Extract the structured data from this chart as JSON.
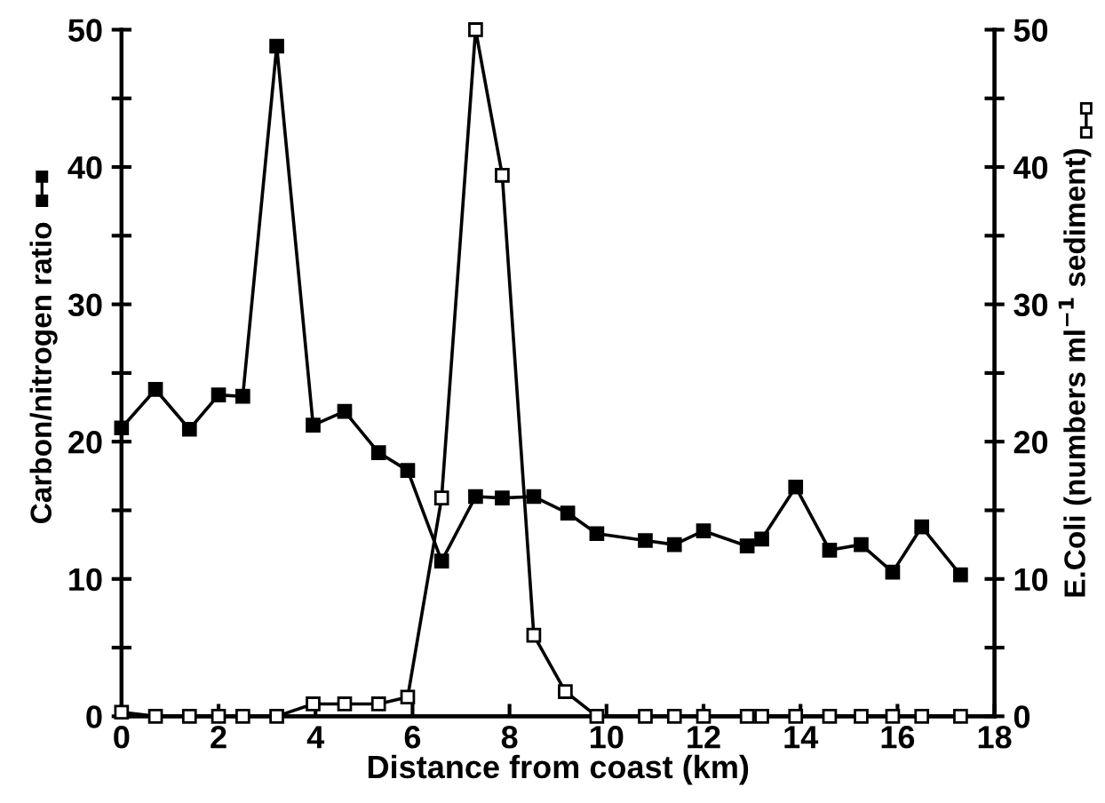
{
  "chart_data": {
    "type": "line",
    "xlabel": "Distance from coast (km)",
    "ylabel": "Carbon/nitrogen ratio",
    "y2label": "E.Coli (numbers ml$^{−1}$ sediment)",
    "marker": "square",
    "line_style": "solid",
    "grid": false,
    "legend": false,
    "xlim": [
      0,
      18
    ],
    "xticks": [
      0,
      2,
      4,
      6,
      8,
      10,
      12,
      14,
      16,
      18
    ],
    "ylim": [
      0,
      50
    ],
    "yticks": [
      0,
      {
        "value": 5,
        "label": null
      },
      10,
      {
        "value": 15,
        "label": null
      },
      20,
      {
        "value": 25,
        "label": null
      },
      30,
      {
        "value": 35,
        "label": null
      },
      40,
      {
        "value": 45,
        "label": null
      },
      50
    ],
    "y2lim": [
      0,
      50
    ],
    "y2ticks": [
      0,
      {
        "value": 5,
        "label": null
      },
      10,
      {
        "value": 15,
        "label": null
      },
      20,
      {
        "value": 25,
        "label": null
      },
      30,
      {
        "value": 35,
        "label": null
      },
      40,
      {
        "value": 45,
        "label": null
      },
      50
    ],
    "series": [
      {
        "color": "#000000",
        "x": [
          0,
          0.7,
          1.4,
          2.0,
          2.5,
          3.2,
          3.95,
          4.6,
          5.3,
          5.9,
          6.6,
          7.3,
          7.85,
          8.5,
          9.2,
          9.8,
          10.8,
          11.4,
          12.0,
          12.9,
          13.2,
          13.9,
          14.6,
          15.25,
          15.9,
          16.5,
          17.3
        ],
        "values": [
          21,
          23.8,
          20.9,
          23.4,
          23.3,
          48.8,
          21.2,
          22.2,
          19.2,
          17.9,
          11.3,
          16,
          15.9,
          16,
          14.8,
          13.3,
          12.8,
          12.5,
          13.5,
          12.4,
          12.9,
          16.7,
          12.1,
          12.5,
          10.5,
          13.8,
          10.3
        ]
      },
      {
        "color": "#000000",
        "axis": "y2",
        "x": [
          0,
          0.7,
          1.4,
          2.0,
          2.5,
          3.2,
          3.95,
          4.6,
          5.3,
          5.9,
          6.6,
          7.3,
          7.85,
          8.5,
          9.15,
          9.8,
          10.8,
          11.4,
          12.0,
          12.9,
          13.2,
          13.9,
          14.6,
          15.25,
          15.9,
          16.5,
          17.3
        ],
        "values": [
          0.3,
          0,
          0,
          0,
          0,
          0,
          0.9,
          0.9,
          0.9,
          1.4,
          15.9,
          50,
          39.4,
          5.9,
          1.8,
          0,
          0,
          0,
          0,
          0,
          0,
          0,
          0,
          0,
          0,
          0,
          0
        ]
      }
    ]
  }
}
